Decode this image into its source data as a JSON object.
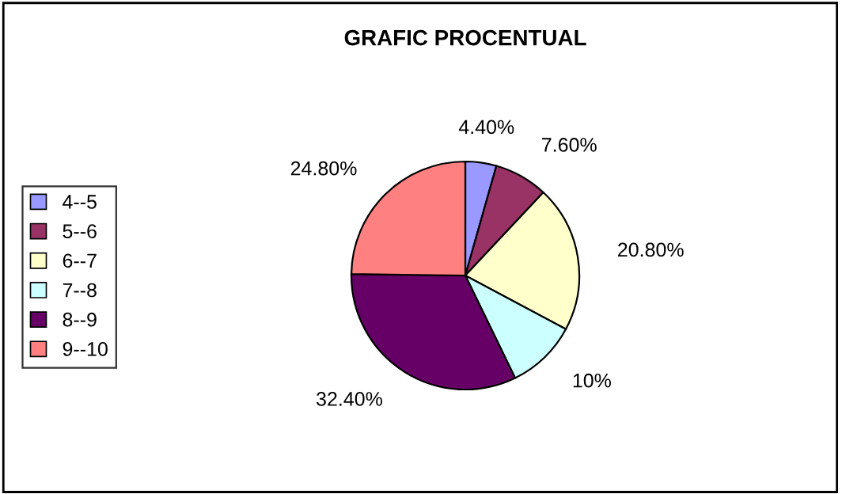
{
  "chart_data": {
    "type": "pie",
    "title": "GRAFIC PROCENTUAL",
    "categories": [
      "4--5",
      "5--6",
      "6--7",
      "7--8",
      "8--9",
      "9--10"
    ],
    "values": [
      4.4,
      7.6,
      20.8,
      10,
      32.4,
      24.8
    ],
    "value_labels": [
      "4.40%",
      "7.60%",
      "20.80%",
      "10%",
      "32.40%",
      "24.80%"
    ],
    "colors": [
      "#9999ff",
      "#993366",
      "#ffffcc",
      "#ccffff",
      "#660066",
      "#ff8080"
    ],
    "legend": "left"
  }
}
